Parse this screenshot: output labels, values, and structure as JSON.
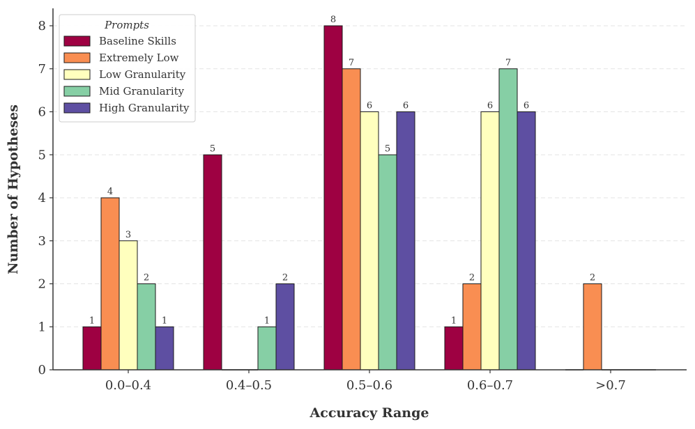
{
  "chart_data": {
    "type": "bar",
    "title": "",
    "xlabel": "Accuracy Range",
    "ylabel": "Number of Hypotheses",
    "categories": [
      "0.0–0.4",
      "0.4–0.5",
      "0.5–0.6",
      "0.6–0.7",
      ">0.7"
    ],
    "ylim": [
      0,
      8.4
    ],
    "yticks": [
      0,
      1,
      2,
      3,
      4,
      5,
      6,
      7,
      8
    ],
    "grid": "horizontal dashed",
    "legend": {
      "title": "Prompts",
      "placement": "top-left"
    },
    "series": [
      {
        "name": "Baseline Skills",
        "color": "#9e0142",
        "values": [
          1,
          5,
          8,
          1,
          0
        ]
      },
      {
        "name": "Extremely Low",
        "color": "#f98e52",
        "values": [
          4,
          0,
          7,
          2,
          2
        ]
      },
      {
        "name": "Low Granularity",
        "color": "#ffffbe",
        "values": [
          3,
          0,
          6,
          6,
          0
        ]
      },
      {
        "name": "Mid Granularity",
        "color": "#86cfa5",
        "values": [
          2,
          1,
          5,
          7,
          0
        ]
      },
      {
        "name": "High Granularity",
        "color": "#5e4fa2",
        "values": [
          1,
          2,
          6,
          6,
          0
        ]
      }
    ]
  }
}
